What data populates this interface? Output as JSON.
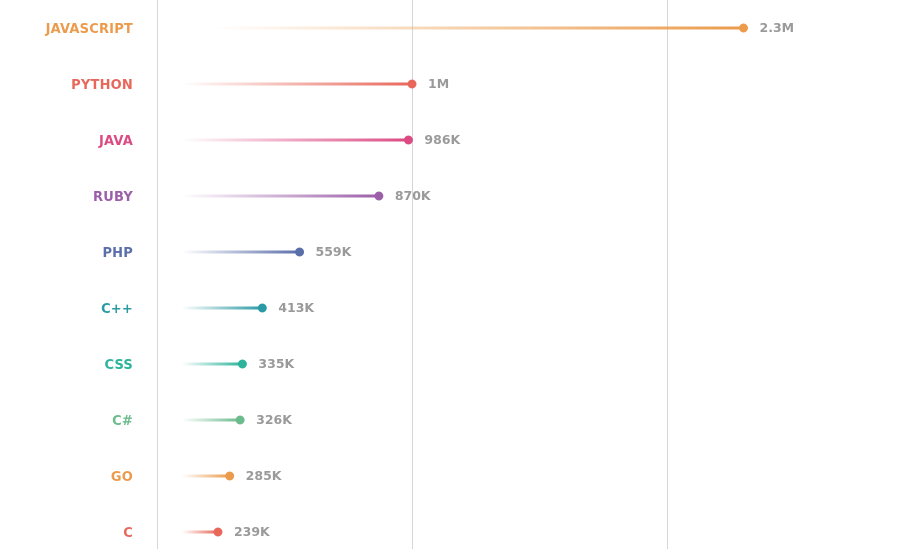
{
  "chart_data": {
    "type": "lollipop",
    "orientation": "horizontal",
    "title": "",
    "xlabel": "",
    "ylabel": "",
    "grid": true,
    "x_gridlines": [
      0,
      1000000,
      2000000
    ],
    "categories": [
      "JAVASCRIPT",
      "PYTHON",
      "JAVA",
      "RUBY",
      "PHP",
      "C++",
      "CSS",
      "C#",
      "GO",
      "C"
    ],
    "values": [
      2300000,
      1000000,
      986000,
      870000,
      559000,
      413000,
      335000,
      326000,
      285000,
      239000
    ],
    "value_labels": [
      "2.3M",
      "1M",
      "986K",
      "870K",
      "559K",
      "413K",
      "335K",
      "326K",
      "285K",
      "239K"
    ],
    "colors": [
      "#eb9b4b",
      "#e8675a",
      "#dc4a82",
      "#9b5ea9",
      "#5a6eaa",
      "#2a9aa5",
      "#2bb39b",
      "#6bbb8c",
      "#eb9b4b",
      "#e8675a"
    ]
  }
}
